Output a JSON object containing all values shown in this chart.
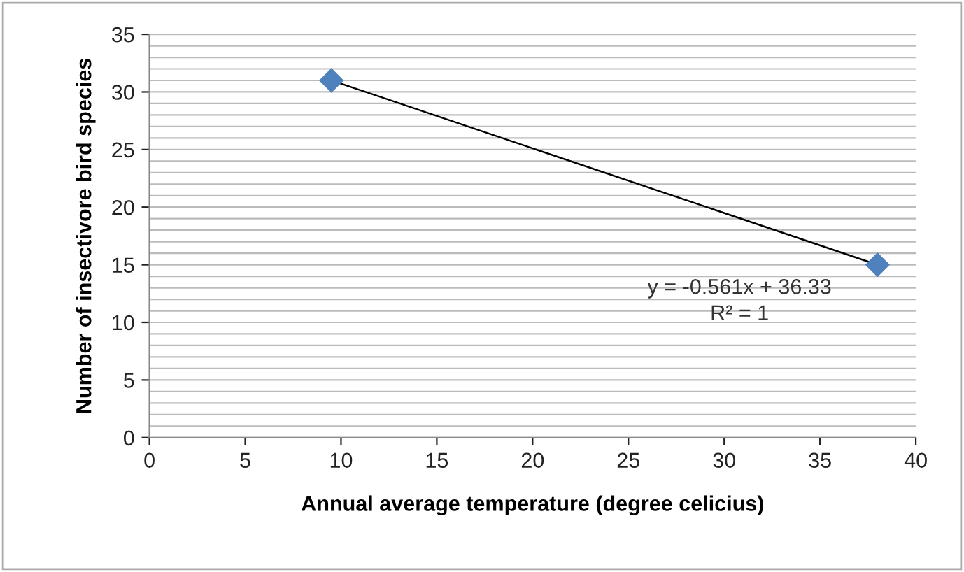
{
  "chart_data": {
    "type": "scatter",
    "xlabel": "Annual average temperature (degree celicius)",
    "ylabel": "Number of insectivore bird species",
    "xlim": [
      0,
      40
    ],
    "xticks": [
      0,
      5,
      10,
      15,
      20,
      25,
      30,
      35,
      40
    ],
    "ylim": [
      0,
      35
    ],
    "yticks": [
      0,
      {
        "value": 1,
        "label": null
      },
      {
        "value": 2,
        "label": null
      },
      {
        "value": 3,
        "label": null
      },
      {
        "value": 4,
        "label": null
      },
      5,
      {
        "value": 6,
        "label": null
      },
      {
        "value": 7,
        "label": null
      },
      {
        "value": 8,
        "label": null
      },
      {
        "value": 9,
        "label": null
      },
      10,
      {
        "value": 11,
        "label": null
      },
      {
        "value": 12,
        "label": null
      },
      {
        "value": 13,
        "label": null
      },
      {
        "value": 14,
        "label": null
      },
      15,
      {
        "value": 16,
        "label": null
      },
      {
        "value": 17,
        "label": null
      },
      {
        "value": 18,
        "label": null
      },
      {
        "value": 19,
        "label": null
      },
      20,
      {
        "value": 21,
        "label": null
      },
      {
        "value": 22,
        "label": null
      },
      {
        "value": 23,
        "label": null
      },
      {
        "value": 24,
        "label": null
      },
      25,
      {
        "value": 26,
        "label": null
      },
      {
        "value": 27,
        "label": null
      },
      {
        "value": 28,
        "label": null
      },
      {
        "value": 29,
        "label": null
      },
      30,
      {
        "value": 31,
        "label": null
      },
      {
        "value": 32,
        "label": null
      },
      {
        "value": 33,
        "label": null
      },
      {
        "value": 34,
        "label": null
      },
      35
    ],
    "grid": "y",
    "x": [
      9.5,
      38
    ],
    "series": [
      {
        "color": "#4f81bd",
        "values": [
          31,
          15
        ],
        "marker": "diamond"
      },
      {
        "type": "line",
        "color": "#000000",
        "values": [
          31.0,
          15.0
        ],
        "marker": "none",
        "line_style": "solid"
      }
    ],
    "annotations": [
      "y = -0.561x + 36.33",
      "R² = 1"
    ]
  }
}
